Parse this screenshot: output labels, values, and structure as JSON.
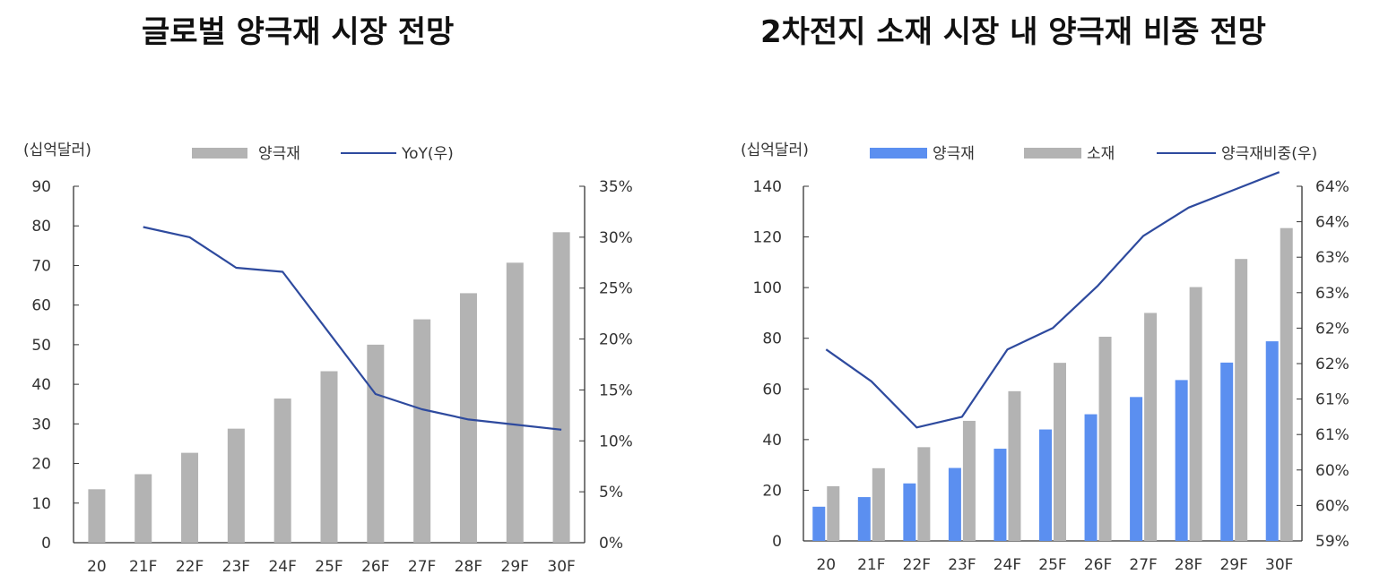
{
  "charts": [
    {
      "id": "left",
      "title": "글로벌 양극재 시장 전망",
      "unit_label": "(십억달러)",
      "legend": [
        "양극재",
        "YoY(우)"
      ],
      "y_left_ticks": [
        "90",
        "80",
        "70",
        "60",
        "50",
        "40",
        "30",
        "20",
        "10",
        "0"
      ],
      "y_right_ticks": [
        "35%",
        "30%",
        "25%",
        "20%",
        "15%",
        "10%",
        "5%",
        "0%"
      ]
    },
    {
      "id": "right",
      "title": "2차전지 소재 시장 내 양극재 비중 전망",
      "unit_label": "(십억달러)",
      "legend": [
        "양극재",
        "소재",
        "양극재비중(우)"
      ],
      "y_left_ticks": [
        "140",
        "120",
        "100",
        "80",
        "60",
        "40",
        "20",
        "0"
      ],
      "y_right_ticks": [
        "64%",
        "64%",
        "63%",
        "63%",
        "62%",
        "62%",
        "61%",
        "61%",
        "60%",
        "60%",
        "59%"
      ]
    }
  ],
  "chart_data": [
    {
      "type": "bar",
      "title": "글로벌 양극재 시장 전망",
      "ylabel": "(십억달러)",
      "categories": [
        "20",
        "21F",
        "22F",
        "23F",
        "24F",
        "25F",
        "26F",
        "27F",
        "28F",
        "29F",
        "30F"
      ],
      "ylim": [
        0,
        90
      ],
      "y2lim": [
        0,
        35
      ],
      "series": [
        {
          "name": "양극재",
          "type": "bar",
          "axis": "left",
          "color": "#b3b3b3",
          "values": [
            13.5,
            17.3,
            22.7,
            28.8,
            36.4,
            43.3,
            50.0,
            56.4,
            63.0,
            70.7,
            78.4
          ]
        },
        {
          "name": "YoY(우)",
          "type": "line",
          "axis": "right",
          "unit": "%",
          "color": "#2e4a9e",
          "values": [
            null,
            31.0,
            30.0,
            27.0,
            26.6,
            20.6,
            14.6,
            13.1,
            12.1,
            11.6,
            11.1
          ]
        }
      ],
      "legend_position": "top"
    },
    {
      "type": "bar",
      "title": "2차전지 소재 시장 내 양극재 비중 전망",
      "ylabel": "(십억달러)",
      "categories": [
        "20",
        "21F",
        "22F",
        "23F",
        "24F",
        "25F",
        "26F",
        "27F",
        "28F",
        "29F",
        "30F"
      ],
      "ylim": [
        0,
        140
      ],
      "y2lim": [
        59.0,
        64.0
      ],
      "series": [
        {
          "name": "양극재",
          "type": "bar",
          "axis": "left",
          "color": "#5b8ff0",
          "values": [
            13.5,
            17.3,
            22.7,
            28.8,
            36.4,
            44.0,
            50.0,
            56.8,
            63.5,
            70.4,
            78.8
          ]
        },
        {
          "name": "소재",
          "type": "bar",
          "axis": "left",
          "color": "#b3b3b3",
          "values": [
            21.6,
            28.7,
            37.0,
            47.4,
            59.1,
            70.3,
            80.6,
            90.0,
            100.2,
            111.3,
            123.5
          ]
        },
        {
          "name": "양극재비중(우)",
          "type": "line",
          "axis": "right",
          "unit": "%",
          "color": "#2e4a9e",
          "values": [
            61.7,
            61.25,
            60.6,
            60.75,
            61.7,
            62.0,
            62.6,
            63.3,
            63.7,
            63.95,
            64.2
          ]
        }
      ],
      "legend_position": "top"
    }
  ]
}
